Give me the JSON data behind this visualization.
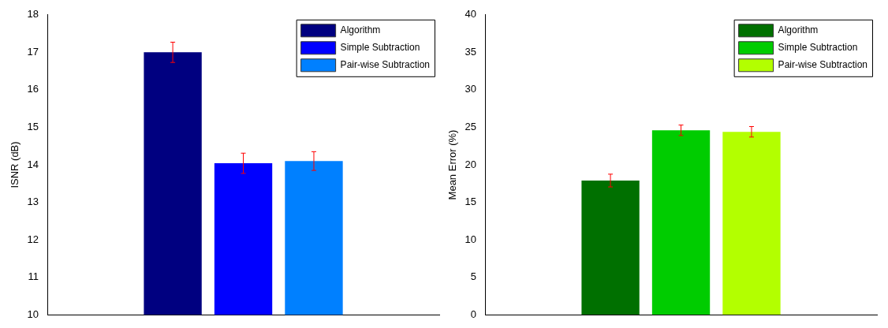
{
  "chart_data": [
    {
      "type": "bar",
      "ylabel": "ISNR (dB)",
      "categories": [
        null
      ],
      "ylim": [
        10,
        18
      ],
      "yticks": [
        10,
        11,
        12,
        13,
        14,
        15,
        16,
        17,
        18
      ],
      "grid": false,
      "legend": "top right",
      "tick_labels": "y",
      "series": [
        {
          "name": "Algorithm",
          "color": "#000080",
          "values": [
            17.0
          ],
          "errors": [
            0.27
          ]
        },
        {
          "name": "Simple Subtraction",
          "color": "#0000ff",
          "values": [
            14.04
          ],
          "errors": [
            0.27
          ]
        },
        {
          "name": "Pair-wise Subtraction",
          "color": "#0080ff",
          "values": [
            14.1
          ],
          "errors": [
            0.25
          ]
        }
      ]
    },
    {
      "type": "bar",
      "ylabel": "Mean Error (%)",
      "categories": [
        null
      ],
      "ylim": [
        0,
        40
      ],
      "yticks": [
        0,
        5,
        10,
        15,
        20,
        25,
        30,
        35,
        40
      ],
      "grid": false,
      "legend": "top right",
      "tick_labels": "y",
      "series": [
        {
          "name": "Algorithm",
          "color": "#007000",
          "values": [
            17.9
          ],
          "errors": [
            0.85
          ]
        },
        {
          "name": "Simple Subtraction",
          "color": "#00cc00",
          "values": [
            24.6
          ],
          "errors": [
            0.7
          ]
        },
        {
          "name": "Pair-wise Subtraction",
          "color": "#b3ff00",
          "values": [
            24.4
          ],
          "errors": [
            0.7
          ]
        }
      ]
    }
  ]
}
